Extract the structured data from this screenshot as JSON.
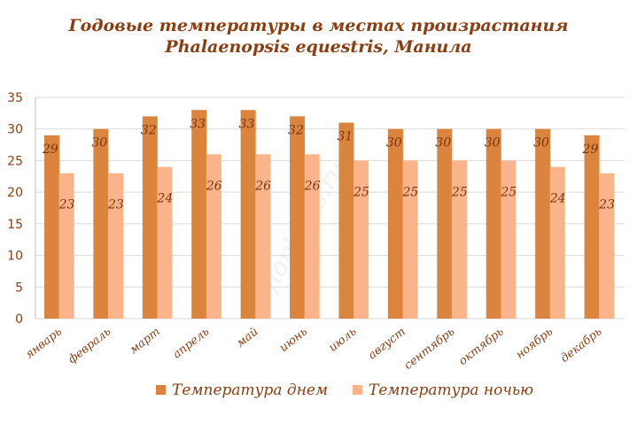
{
  "chart_data": {
    "type": "bar",
    "title_line1": "Годовые температуры в местах произрастания",
    "title_line2": "Phalaenopsis equestris, Манила",
    "categories": [
      "январь",
      "февраль",
      "март",
      "апрель",
      "май",
      "июнь",
      "июль",
      "август",
      "сентябрь",
      "октябрь",
      "ноябрь",
      "декабрь"
    ],
    "series": [
      {
        "name": "Температура днем",
        "color": "#db843d",
        "values": [
          29,
          30,
          32,
          33,
          33,
          32,
          31,
          30,
          30,
          30,
          30,
          29
        ]
      },
      {
        "name": "Температура ночью",
        "color": "#f9b48c",
        "values": [
          23,
          23,
          24,
          26,
          26,
          26,
          25,
          25,
          25,
          25,
          24,
          23
        ]
      }
    ],
    "ylim": [
      0,
      35
    ],
    "yticks": [
      0,
      5,
      10,
      15,
      20,
      25,
      30,
      35
    ],
    "grid": true,
    "legend_position": "bottom",
    "watermark": "floplants.ru"
  }
}
